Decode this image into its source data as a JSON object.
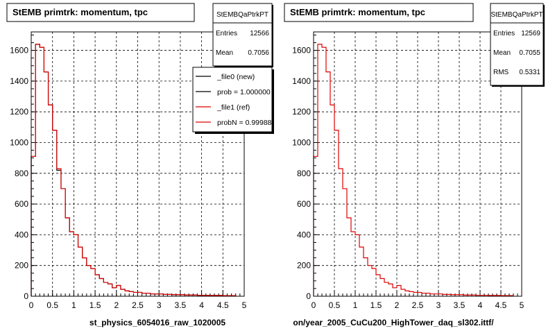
{
  "colors": {
    "new_hist": "#000000",
    "ref_hist": "#dd0000",
    "grid": "#000000",
    "frame": "#000000"
  },
  "footer_text": "",
  "legend": {
    "entries": [
      {
        "label": "_file0 (new)",
        "color": "#000000"
      },
      {
        "label": "prob = 1.000000",
        "color": "#000000"
      },
      {
        "label": "_file1 (ref)",
        "color": "#dd0000"
      },
      {
        "label": "probN = 0.99988",
        "color": "#dd0000"
      }
    ]
  },
  "chart_data": [
    {
      "type": "histogram",
      "title": "StEMB primtrk: momentum, tpc",
      "xlabel": "st_physics_6054016_raw_1020005",
      "ylabel": "",
      "xlim": [
        0,
        5
      ],
      "ylim": [
        0,
        1720
      ],
      "xticks": [
        "0",
        "0.5",
        "1",
        "1.5",
        "2",
        "2.5",
        "3",
        "3.5",
        "4",
        "4.5",
        "5"
      ],
      "yticks": [
        "0",
        "200",
        "400",
        "600",
        "800",
        "1000",
        "1200",
        "1400",
        "1600"
      ],
      "grid": true,
      "legend_position": "top-right",
      "stats": {
        "name": "StEMBQaPtrkPT",
        "rows": [
          {
            "label": "Entries",
            "value": "12566"
          },
          {
            "label": "Mean",
            "value": "0.7056"
          }
        ]
      },
      "bin_width": 0.1,
      "x_start": 0,
      "series": [
        {
          "name": "_file0 (new)",
          "color": "#000000",
          "values": [
            910,
            1640,
            1620,
            1460,
            1245,
            1080,
            820,
            700,
            510,
            420,
            400,
            320,
            250,
            200,
            180,
            140,
            115,
            90,
            80,
            55,
            70,
            45,
            35,
            30,
            25,
            25,
            20,
            20,
            15,
            15,
            15,
            12,
            12,
            10,
            10,
            10,
            8,
            8,
            8,
            6,
            6,
            6,
            5,
            5,
            5,
            4,
            4,
            4
          ]
        },
        {
          "name": "_file1 (ref)",
          "color": "#dd0000",
          "values": [
            910,
            1640,
            1620,
            1460,
            1245,
            1080,
            830,
            700,
            510,
            420,
            400,
            320,
            250,
            200,
            180,
            140,
            115,
            90,
            80,
            55,
            70,
            45,
            35,
            30,
            25,
            25,
            20,
            20,
            15,
            15,
            15,
            12,
            12,
            10,
            10,
            10,
            8,
            8,
            8,
            6,
            6,
            6,
            5,
            5,
            5,
            4,
            4,
            4
          ]
        }
      ]
    },
    {
      "type": "histogram",
      "title": "StEMB primtrk: momentum, tpc",
      "xlabel": "on/year_2005_CuCu200_HighTower_daq_sl302.ittf/",
      "ylabel": "",
      "xlim": [
        0,
        5
      ],
      "ylim": [
        0,
        1720
      ],
      "xticks": [
        "0",
        "0.5",
        "1",
        "1.5",
        "2",
        "2.5",
        "3",
        "3.5",
        "4",
        "4.5",
        "5"
      ],
      "yticks": [
        "0",
        "200",
        "400",
        "600",
        "800",
        "1000",
        "1200",
        "1400",
        "1600"
      ],
      "grid": true,
      "stats": {
        "name": "StEMBQaPtrkPT",
        "rows": [
          {
            "label": "Entries",
            "value": "12569"
          },
          {
            "label": "Mean",
            "value": "0.7055"
          },
          {
            "label": "RMS",
            "value": "0.5331"
          }
        ]
      },
      "bin_width": 0.1,
      "x_start": 0,
      "series": [
        {
          "name": "",
          "color": "#dd0000",
          "values": [
            910,
            1640,
            1620,
            1460,
            1245,
            1080,
            830,
            700,
            510,
            420,
            400,
            320,
            250,
            200,
            180,
            140,
            115,
            90,
            80,
            55,
            70,
            45,
            35,
            30,
            25,
            25,
            20,
            20,
            15,
            15,
            15,
            12,
            12,
            10,
            10,
            10,
            8,
            8,
            8,
            6,
            6,
            6,
            5,
            5,
            5,
            4,
            4,
            4
          ]
        }
      ]
    }
  ]
}
